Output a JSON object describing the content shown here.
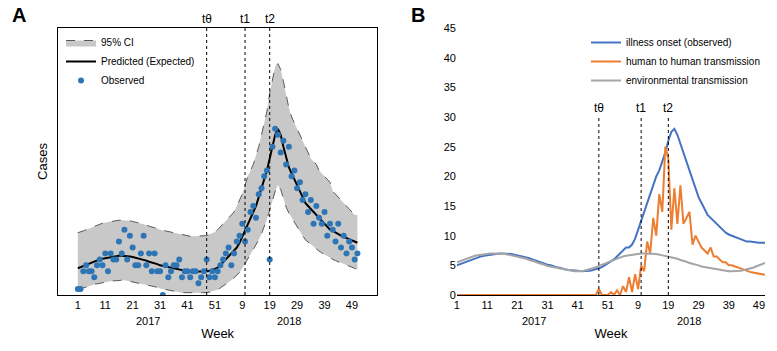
{
  "chart_data": [
    {
      "type": "line",
      "panel": "A",
      "x_label": "Week",
      "y_label": "Cases",
      "tick_labels": "x",
      "grid": false,
      "legend": "upper left",
      "ylim": [
        0,
        45
      ],
      "categories": [
        "1",
        null,
        null,
        null,
        null,
        null,
        null,
        null,
        null,
        null,
        "11",
        null,
        null,
        null,
        null,
        null,
        null,
        null,
        null,
        null,
        "21",
        null,
        null,
        null,
        null,
        null,
        null,
        null,
        null,
        null,
        "31",
        null,
        null,
        null,
        null,
        null,
        null,
        null,
        null,
        null,
        "41",
        null,
        null,
        null,
        null,
        null,
        null,
        null,
        null,
        null,
        "51",
        null,
        null,
        null,
        null,
        null,
        null,
        null,
        null,
        null,
        "9",
        null,
        null,
        null,
        null,
        null,
        null,
        null,
        null,
        null,
        "19",
        null,
        null,
        null,
        null,
        null,
        null,
        null,
        null,
        null,
        "29",
        null,
        null,
        null,
        null,
        null,
        null,
        null,
        null,
        null,
        "39",
        null,
        null,
        null,
        null,
        null,
        null,
        null,
        null,
        null,
        "49",
        null,
        null
      ],
      "x_groups": [
        {
          "label": "2017",
          "from": 0,
          "to": 51
        },
        {
          "label": "2018",
          "from": 52,
          "to": 102
        }
      ],
      "vlines": [
        {
          "label": "tθ",
          "x": 47
        },
        {
          "label": "t1",
          "x": 61
        },
        {
          "label": "t2",
          "x": 70
        }
      ],
      "series": [
        {
          "name": "95% CI",
          "type": "band",
          "color": "#c8c8c8",
          "line_style": "dashed",
          "lower": [
            1.0,
            1.0,
            1.2,
            1.3,
            1.5,
            1.6,
            1.8,
            1.9,
            2.0,
            2.1,
            2.2,
            2.3,
            2.3,
            2.4,
            2.4,
            2.5,
            2.5,
            2.5,
            2.4,
            2.4,
            2.3,
            2.2,
            2.1,
            2.0,
            1.9,
            1.8,
            1.6,
            1.5,
            1.4,
            1.3,
            1.1,
            1.0,
            0.9,
            0.8,
            0.7,
            0.6,
            0.5,
            0.5,
            0.4,
            0.4,
            0.4,
            0.3,
            0.3,
            0.3,
            0.3,
            0.3,
            0.4,
            0.4,
            0.5,
            0.6,
            0.7,
            0.9,
            1.2,
            1.5,
            1.8,
            2.1,
            2.5,
            2.9,
            3.3,
            3.8,
            4.5,
            5.3,
            6.0,
            6.8,
            7.5,
            8.3,
            9.3,
            10.3,
            11.5,
            12.8,
            14.3,
            16.0,
            17.5,
            18.5,
            17.8,
            16.3,
            14.8,
            13.8,
            13.0,
            12.3,
            11.5,
            10.8,
            10.0,
            9.3,
            8.9,
            8.5,
            8.1,
            7.8,
            7.4,
            7.1,
            6.8,
            6.5,
            6.2,
            6.0,
            5.8,
            5.6,
            5.4,
            5.2,
            5.0,
            4.9,
            4.7,
            4.5,
            4.3
          ],
          "upper": [
            10.5,
            10.6,
            10.8,
            11.0,
            11.2,
            11.4,
            11.6,
            11.8,
            12.0,
            12.1,
            12.2,
            12.3,
            12.4,
            12.5,
            12.5,
            12.6,
            12.6,
            12.6,
            12.5,
            12.5,
            12.4,
            12.3,
            12.2,
            12.0,
            11.9,
            11.8,
            11.6,
            11.5,
            11.3,
            11.2,
            11.0,
            10.9,
            10.7,
            10.6,
            10.5,
            10.4,
            10.3,
            10.2,
            10.1,
            10.0,
            10.0,
            9.9,
            9.9,
            9.9,
            9.9,
            9.9,
            10.0,
            10.0,
            10.2,
            10.4,
            10.6,
            11.0,
            11.5,
            12.0,
            12.5,
            13.0,
            13.5,
            14.0,
            15.0,
            16.0,
            17.0,
            18.5,
            20.0,
            21.0,
            22.0,
            23.5,
            25.0,
            27.0,
            29.0,
            31.0,
            34.0,
            36.5,
            38.5,
            39.0,
            38.0,
            36.0,
            33.5,
            31.5,
            30.0,
            29.0,
            28.0,
            27.0,
            26.0,
            25.0,
            24.0,
            23.0,
            22.5,
            22.0,
            21.0,
            20.5,
            20.0,
            19.5,
            19.0,
            17.5,
            17.0,
            16.5,
            16.0,
            15.5,
            15.0,
            14.5,
            14.0,
            13.5,
            13.5
          ]
        },
        {
          "name": "Predicted (Expected)",
          "type": "line",
          "color": "#000000",
          "line_style": "solid",
          "values": [
            4.5,
            4.7,
            4.9,
            5.1,
            5.3,
            5.5,
            5.7,
            5.9,
            6.0,
            6.1,
            6.2,
            6.3,
            6.4,
            6.5,
            6.5,
            6.6,
            6.6,
            6.6,
            6.5,
            6.5,
            6.4,
            6.3,
            6.2,
            6.0,
            5.9,
            5.8,
            5.6,
            5.5,
            5.3,
            5.2,
            5.0,
            4.9,
            4.7,
            4.6,
            4.5,
            4.4,
            4.3,
            4.2,
            4.1,
            4.0,
            4.0,
            3.9,
            3.9,
            3.9,
            3.9,
            3.9,
            4.0,
            4.0,
            4.1,
            4.2,
            4.4,
            4.6,
            5.0,
            5.5,
            6.0,
            6.5,
            7.0,
            7.5,
            8.0,
            8.8,
            9.8,
            11.0,
            12.0,
            13.0,
            14.0,
            15.0,
            16.5,
            18.0,
            19.5,
            21.0,
            23.0,
            25.0,
            27.0,
            28.0,
            27.0,
            25.0,
            23.0,
            21.5,
            20.5,
            19.5,
            18.5,
            17.5,
            16.5,
            15.5,
            15.0,
            14.5,
            14.0,
            13.5,
            13.0,
            12.5,
            12.0,
            11.5,
            11.0,
            10.8,
            10.5,
            10.2,
            10.0,
            9.8,
            9.6,
            9.4,
            9.2,
            9.0,
            8.8
          ]
        },
        {
          "name": "Observed",
          "type": "scatter",
          "color": "#2e75b6",
          "marker": "circle",
          "values": [
            1,
            1,
            4,
            5,
            4,
            4,
            3,
            5,
            6,
            5,
            7,
            4,
            7,
            6,
            6,
            9,
            7,
            11,
            6,
            10,
            8,
            5,
            5,
            7,
            10,
            5,
            7,
            4,
            7,
            4,
            4,
            0,
            5,
            3,
            4,
            5,
            5,
            6,
            3,
            4,
            4,
            3,
            4,
            4,
            2,
            3,
            4,
            6,
            3,
            4,
            3,
            4,
            5,
            6,
            7,
            8,
            5,
            7,
            9,
            10,
            12,
            9,
            11,
            14,
            15,
            13,
            17,
            18,
            20,
            21,
            6,
            25,
            28,
            27,
            24,
            26,
            22,
            25,
            20,
            21,
            18,
            19,
            16,
            17,
            14,
            16,
            12,
            15,
            13,
            12,
            14,
            10,
            12,
            11,
            9,
            12,
            8,
            10,
            7,
            9,
            8,
            6,
            7
          ]
        }
      ]
    },
    {
      "type": "line",
      "panel": "B",
      "x_label": "Week",
      "grid": false,
      "legend": "upper right",
      "ylim": [
        0,
        45
      ],
      "yticks": [
        0,
        5,
        10,
        15,
        20,
        25,
        30,
        35,
        40,
        45
      ],
      "categories": [
        "1",
        null,
        null,
        null,
        null,
        null,
        null,
        null,
        null,
        null,
        "11",
        null,
        null,
        null,
        null,
        null,
        null,
        null,
        null,
        null,
        "21",
        null,
        null,
        null,
        null,
        null,
        null,
        null,
        null,
        null,
        "31",
        null,
        null,
        null,
        null,
        null,
        null,
        null,
        null,
        null,
        "41",
        null,
        null,
        null,
        null,
        null,
        null,
        null,
        null,
        null,
        "51",
        null,
        null,
        null,
        null,
        null,
        null,
        null,
        null,
        null,
        "9",
        null,
        null,
        null,
        null,
        null,
        null,
        null,
        null,
        null,
        "19",
        null,
        null,
        null,
        null,
        null,
        null,
        null,
        null,
        null,
        "29",
        null,
        null,
        null,
        null,
        null,
        null,
        null,
        null,
        null,
        "39",
        null,
        null,
        null,
        null,
        null,
        null,
        null,
        null,
        null,
        "49",
        null,
        null
      ],
      "x_groups": [
        {
          "label": "2017",
          "from": 0,
          "to": 51
        },
        {
          "label": "2018",
          "from": 52,
          "to": 102
        }
      ],
      "vlines": [
        {
          "label": "tθ",
          "x": 47,
          "to": 30
        },
        {
          "label": "t1",
          "x": 61,
          "to": 30
        },
        {
          "label": "t2",
          "x": 70,
          "to": 30
        }
      ],
      "series": [
        {
          "name": "illness onset (observed)",
          "color": "#4472c4",
          "line_style": "solid",
          "values": [
            5.0,
            5.2,
            5.4,
            5.6,
            5.8,
            6.0,
            6.2,
            6.3,
            6.5,
            6.6,
            6.7,
            6.8,
            6.9,
            6.9,
            7.0,
            7.0,
            7.0,
            6.9,
            6.9,
            6.8,
            6.7,
            6.6,
            6.5,
            6.3,
            6.2,
            6.0,
            5.8,
            5.6,
            5.5,
            5.3,
            5.1,
            5.0,
            4.8,
            4.7,
            4.6,
            4.4,
            4.3,
            4.2,
            4.2,
            4.1,
            4.1,
            4.0,
            4.0,
            4.0,
            4.1,
            4.2,
            4.3,
            4.5,
            4.7,
            5.0,
            5.3,
            5.6,
            6.0,
            6.5,
            7.0,
            7.5,
            8.0,
            8.0,
            8.5,
            9.5,
            11.0,
            12.5,
            14.0,
            15.5,
            17.0,
            18.5,
            20.0,
            21.0,
            22.5,
            24.0,
            26.0,
            27.5,
            28.0,
            27.0,
            25.5,
            24.0,
            22.5,
            21.0,
            19.5,
            18.0,
            16.5,
            15.5,
            14.5,
            13.5,
            13.0,
            12.5,
            12.0,
            11.5,
            11.0,
            10.5,
            10.2,
            10.0,
            9.8,
            9.6,
            9.4,
            9.2,
            9.0,
            9.0,
            8.9,
            8.8,
            8.8,
            8.8,
            8.8
          ]
        },
        {
          "name": "human to human transmission",
          "color": "#ed7d31",
          "line_style": "solid",
          "values": [
            0,
            0,
            0,
            0,
            0,
            0,
            0,
            0,
            0,
            0,
            0,
            0,
            0,
            0,
            0,
            0,
            0,
            0,
            0,
            0,
            0,
            0,
            0,
            0,
            0,
            0,
            0,
            0,
            0,
            0,
            0,
            0,
            0,
            0,
            0,
            0,
            0,
            0,
            0,
            0,
            0,
            0,
            0,
            0,
            0,
            0,
            0,
            1,
            0,
            0,
            0,
            0.5,
            0,
            0.8,
            0,
            1.5,
            0.5,
            3,
            0.5,
            3.5,
            1,
            5,
            4,
            9,
            7,
            13,
            10,
            17,
            14,
            25,
            23,
            11,
            18,
            12,
            18.5,
            12,
            13,
            14,
            8.5,
            10,
            9,
            8,
            7.5,
            7,
            8,
            6.5,
            6.5,
            6,
            5.5,
            5.5,
            5,
            5,
            4.8,
            4.6,
            4.4,
            4.2,
            4,
            3.9,
            3.8,
            3.7,
            3.6,
            3.5,
            3.4
          ]
        },
        {
          "name": "environmental transmission",
          "color": "#a5a5a5",
          "line_style": "solid",
          "values": [
            5.5,
            5.7,
            5.9,
            6.1,
            6.3,
            6.5,
            6.6,
            6.7,
            6.8,
            6.9,
            7.0,
            7.0,
            7.0,
            7.0,
            7.0,
            6.9,
            6.9,
            6.8,
            6.7,
            6.6,
            6.5,
            6.4,
            6.2,
            6.1,
            5.9,
            5.8,
            5.6,
            5.4,
            5.3,
            5.1,
            4.9,
            4.8,
            4.6,
            4.5,
            4.4,
            4.3,
            4.2,
            4.1,
            4.1,
            4.0,
            4.0,
            4.0,
            4.1,
            4.2,
            4.3,
            4.5,
            4.7,
            4.9,
            5.1,
            5.3,
            5.5,
            5.8,
            6.0,
            6.2,
            6.4,
            6.5,
            6.6,
            6.7,
            6.8,
            6.9,
            6.9,
            7.0,
            7.0,
            7.0,
            7.0,
            6.9,
            6.9,
            6.8,
            6.7,
            6.6,
            6.5,
            6.4,
            6.2,
            6.1,
            5.9,
            5.8,
            5.6,
            5.4,
            5.3,
            5.1,
            5.0,
            4.8,
            4.7,
            4.6,
            4.5,
            4.4,
            4.3,
            4.2,
            4.1,
            4.1,
            4.0,
            4.0,
            4.0,
            4.0,
            4.1,
            4.2,
            4.3,
            4.5,
            4.6,
            4.8,
            5.0,
            5.2,
            5.4
          ]
        }
      ]
    }
  ]
}
